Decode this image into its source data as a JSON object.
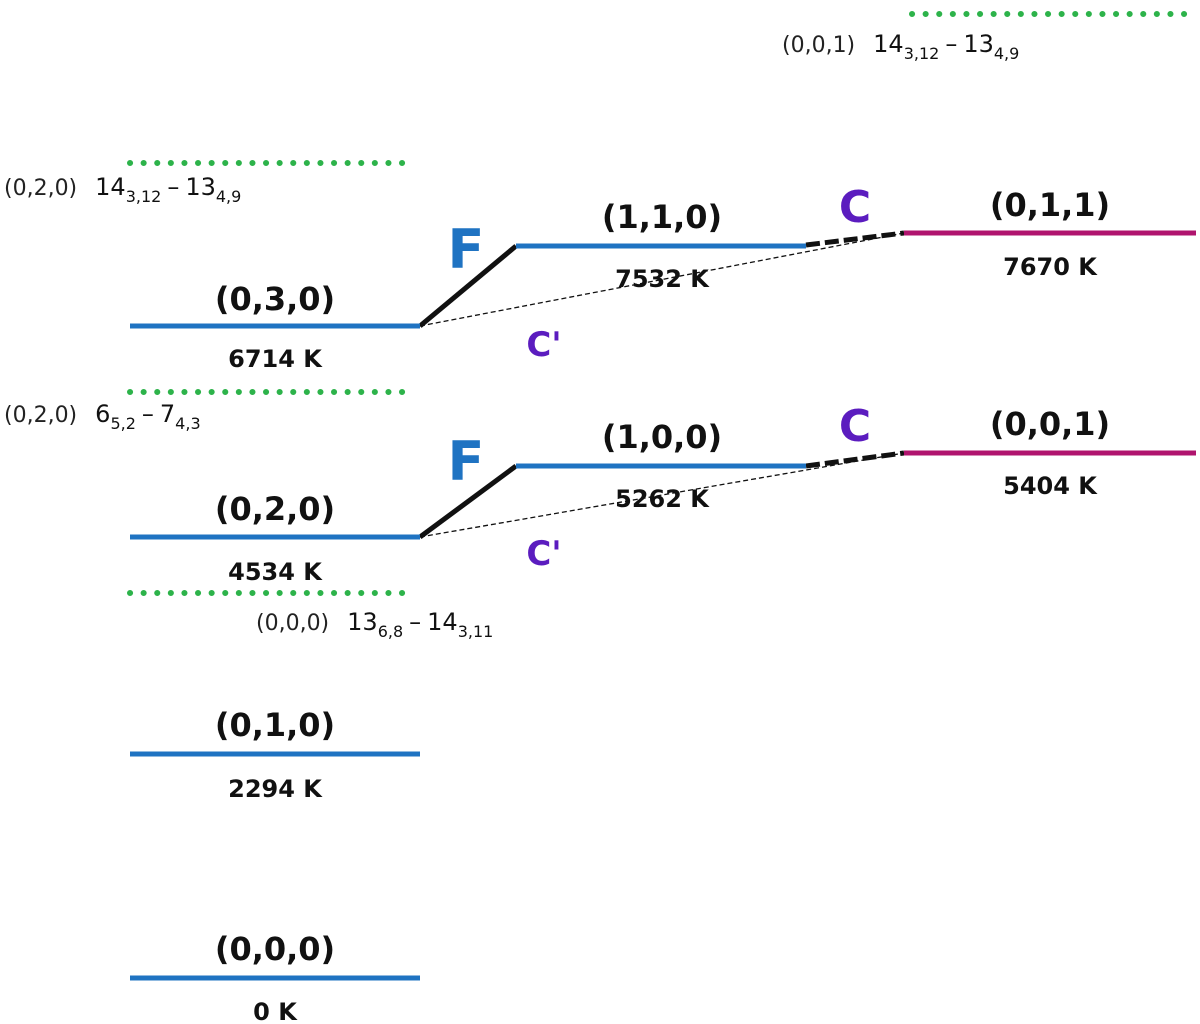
{
  "colors": {
    "level_line": "#1f73c2",
    "level_line_magenta": "#b0146e",
    "dotted_line": "#2db34a",
    "fermi_letter": "#1f73c2",
    "coriolis_letter": "#5b1cbf",
    "coupling_line": "#111111"
  },
  "levels": {
    "v000": {
      "state": "(0,0,0)",
      "energy": "0 K"
    },
    "v010": {
      "state": "(0,1,0)",
      "energy": "2294 K"
    },
    "v020": {
      "state": "(0,2,0)",
      "energy": "4534 K"
    },
    "v030": {
      "state": "(0,3,0)",
      "energy": "6714 K"
    },
    "v100": {
      "state": "(1,0,0)",
      "energy": "5262 K"
    },
    "v110": {
      "state": "(1,1,0)",
      "energy": "7532 K"
    },
    "v001": {
      "state": "(0,0,1)",
      "energy": "5404 K"
    },
    "v011": {
      "state": "(0,1,1)",
      "energy": "7670 K"
    }
  },
  "transitions": {
    "t001": {
      "vib": "(0,0,1)",
      "up_j": "14",
      "up_sub": "3,12",
      "dash": "–",
      "lo_j": "13",
      "lo_sub": "4,9"
    },
    "t020_hi": {
      "vib": "(0,2,0)",
      "up_j": "14",
      "up_sub": "3,12",
      "dash": "–",
      "lo_j": "13",
      "lo_sub": "4,9"
    },
    "t020_lo": {
      "vib": "(0,2,0)",
      "up_j": "6",
      "up_sub": "5,2",
      "dash": "–",
      "lo_j": "7",
      "lo_sub": "4,3"
    },
    "t000": {
      "vib": "(0,0,0)",
      "up_j": "13",
      "up_sub": "6,8",
      "dash": "–",
      "lo_j": "14",
      "lo_sub": "3,11"
    }
  },
  "couplings": {
    "fermi": "F",
    "coriolis": "C",
    "coriolis_prime": "C'"
  },
  "icons": {
    "dotted_marker": "green-dotted-line",
    "fermi_resonance": "fermi-link-line",
    "coriolis_link": "coriolis-dashed-line"
  }
}
